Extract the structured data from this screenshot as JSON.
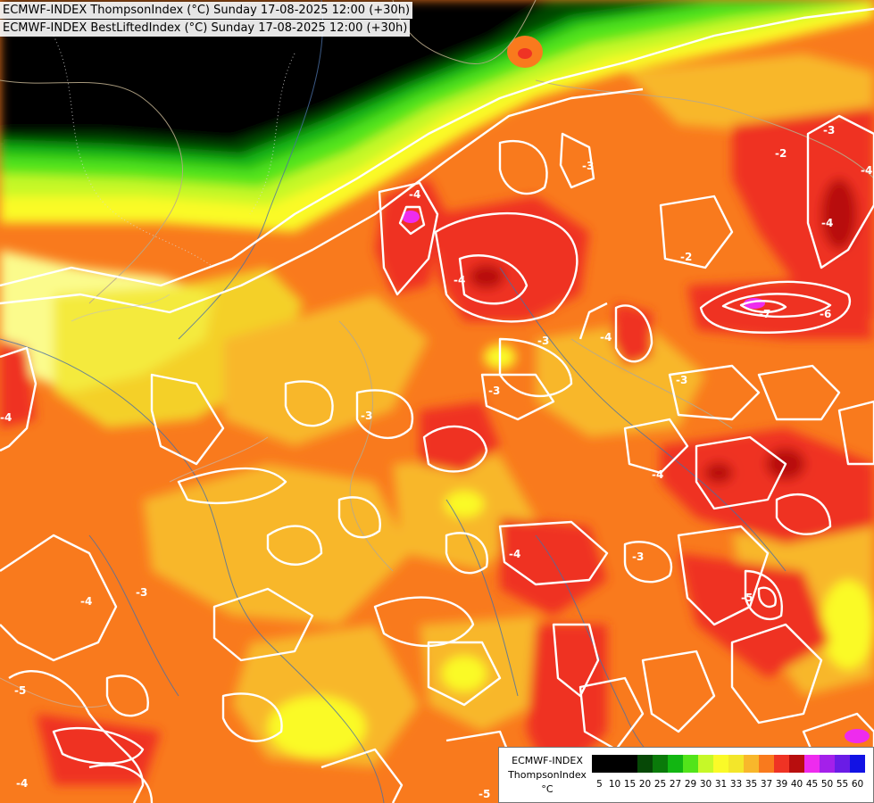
{
  "header": {
    "line1": "ECMWF-INDEX ThompsonIndex (°C) Sunday 17-08-2025 12:00 (+30h)",
    "line2": "ECMWF-INDEX BestLiftedIndex (°C) Sunday 17-08-2025 12:00 (+30h)"
  },
  "legend": {
    "model": "ECMWF-INDEX",
    "parameter": "ThompsonIndex",
    "unit": "°C",
    "steps": [
      {
        "label": "5",
        "color": "#000000"
      },
      {
        "label": "10",
        "color": "#000000"
      },
      {
        "label": "15",
        "color": "#000000"
      },
      {
        "label": "20",
        "color": "#064806"
      },
      {
        "label": "25",
        "color": "#0a7a0a"
      },
      {
        "label": "27",
        "color": "#12b612"
      },
      {
        "label": "29",
        "color": "#52e41a"
      },
      {
        "label": "30",
        "color": "#c6f828"
      },
      {
        "label": "31",
        "color": "#fafa28"
      },
      {
        "label": "33",
        "color": "#f3e62a"
      },
      {
        "label": "35",
        "color": "#f8b72b"
      },
      {
        "label": "37",
        "color": "#f97a1d"
      },
      {
        "label": "39",
        "color": "#ef3324"
      },
      {
        "label": "40",
        "color": "#b80e0e"
      },
      {
        "label": "45",
        "color": "#ee2bee"
      },
      {
        "label": "50",
        "color": "#a420ea"
      },
      {
        "label": "55",
        "color": "#6a1ce6"
      },
      {
        "label": "60",
        "color": "#1212e4"
      }
    ]
  },
  "contour_labels": [
    "-4",
    "-4",
    "-3",
    "-3",
    "-3",
    "-3",
    "-4",
    "-4",
    "-2",
    "-3",
    "-2",
    "-3",
    "-7",
    "-6",
    "-4",
    "-3",
    "-4",
    "-4",
    "-3",
    "-5",
    "-5",
    "-4",
    "-5",
    "-4",
    "-4"
  ]
}
